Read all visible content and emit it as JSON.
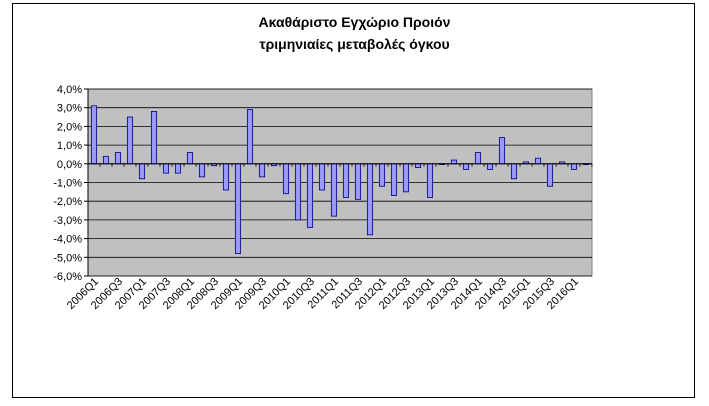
{
  "chart_data": {
    "type": "bar",
    "title": "Ακαθάριστο Εγχώριο Προιόν",
    "subtitle": "τριμηνιαίες μεταβολές όγκου",
    "xlabel": "",
    "ylabel": "",
    "ylim": [
      -6.0,
      4.0
    ],
    "yticks": [
      "4,0%",
      "3,0%",
      "2,0%",
      "1,0%",
      "0,0%",
      "-1,0%",
      "-2,0%",
      "-3,0%",
      "-4,0%",
      "-5,0%",
      "-6,0%"
    ],
    "grid": true,
    "legend": "none",
    "categories": [
      "2006Q1",
      "2006Q2",
      "2006Q3",
      "2006Q4",
      "2007Q1",
      "2007Q2",
      "2007Q3",
      "2007Q4",
      "2008Q1",
      "2008Q2",
      "2008Q3",
      "2008Q4",
      "2009Q1",
      "2009Q2",
      "2009Q3",
      "2009Q4",
      "2010Q1",
      "2010Q2",
      "2010Q3",
      "2010Q4",
      "2011Q1",
      "2011Q2",
      "2011Q3",
      "2011Q4",
      "2012Q1",
      "2012Q2",
      "2012Q3",
      "2012Q4",
      "2013Q1",
      "2013Q2",
      "2013Q3",
      "2013Q4",
      "2014Q1",
      "2014Q2",
      "2014Q3",
      "2014Q4",
      "2015Q1",
      "2015Q2",
      "2015Q3",
      "2015Q4",
      "2016Q1",
      "2016Q2"
    ],
    "visible_xtick_labels": [
      "2006Q1",
      "2006Q3",
      "2007Q1",
      "2007Q3",
      "2008Q1",
      "2008Q3",
      "2009Q1",
      "2009Q3",
      "2010Q1",
      "2010Q3",
      "2011Q1",
      "2011Q3",
      "2012Q1",
      "2012Q3",
      "2013Q1",
      "2013Q3",
      "2014Q1",
      "2014Q3",
      "2015Q1",
      "2015Q3",
      "2016Q1"
    ],
    "values": [
      3.1,
      0.4,
      0.6,
      2.5,
      -0.8,
      2.8,
      -0.5,
      -0.5,
      0.6,
      -0.7,
      -0.1,
      -1.4,
      -4.8,
      2.9,
      -0.7,
      -0.1,
      -1.6,
      -3.0,
      -3.4,
      -1.4,
      -2.8,
      -1.8,
      -1.9,
      -3.8,
      -1.2,
      -1.7,
      -1.5,
      -0.2,
      -1.8,
      0.0,
      0.2,
      -0.3,
      0.6,
      -0.3,
      1.4,
      -0.8,
      0.1,
      0.3,
      -1.2,
      0.1,
      -0.3,
      0.0
    ],
    "colors": {
      "plot_bg": "#c0c0c0",
      "bar_fill": "#9999ff",
      "bar_stroke": "#000080",
      "grid": "#000000"
    }
  }
}
